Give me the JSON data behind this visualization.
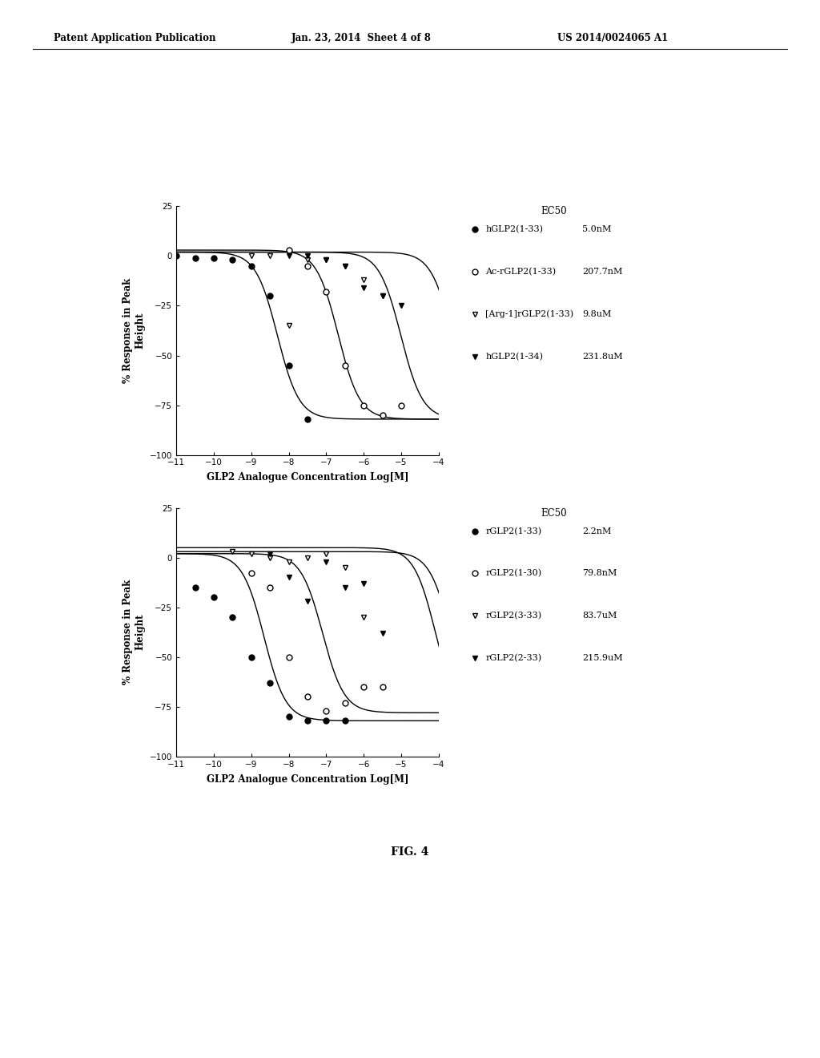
{
  "header_left": "Patent Application Publication",
  "header_mid": "Jan. 23, 2014  Sheet 4 of 8",
  "header_right": "US 2014/0024065 A1",
  "footer": "FIG. 4",
  "plot1": {
    "xlabel": "GLP2 Analogue Concentration Log[M]",
    "ylabel": "% Response in Peak\nHeight",
    "xlim": [
      -11,
      -4
    ],
    "ylim": [
      -100,
      25
    ],
    "yticks": [
      -100,
      -75,
      -50,
      -25,
      0,
      25
    ],
    "xticks": [
      -11,
      -10,
      -9,
      -8,
      -7,
      -6,
      -5,
      -4
    ],
    "ec50_label": "EC50",
    "series": [
      {
        "label": "hGLP2(1-33)",
        "ec50_text": "5.0nM",
        "marker": "o",
        "filled": true,
        "ec50_log": -8.301,
        "hill": 1.5,
        "top": 2,
        "bottom": -82,
        "data_x": [
          -11.0,
          -10.5,
          -10.0,
          -9.5,
          -9.0,
          -8.5,
          -8.0,
          -7.5
        ],
        "data_y": [
          0,
          -1,
          -1,
          -2,
          -5,
          -20,
          -55,
          -82
        ]
      },
      {
        "label": "Ac-rGLP2(1-33)",
        "ec50_text": "207.7nM",
        "marker": "o",
        "filled": false,
        "ec50_log": -6.683,
        "hill": 1.5,
        "top": 3,
        "bottom": -82,
        "data_x": [
          -8.0,
          -7.5,
          -7.0,
          -6.5,
          -6.0,
          -5.5,
          -5.0
        ],
        "data_y": [
          3,
          -5,
          -18,
          -55,
          -75,
          -80,
          -75
        ]
      },
      {
        "label": "[Arg-1]rGLP2(1-33)",
        "ec50_text": "9.8uM",
        "marker": "v",
        "filled": false,
        "ec50_log": -5.009,
        "hill": 1.5,
        "top": 2,
        "bottom": -82,
        "data_x": [
          -9.0,
          -8.5,
          -8.0,
          -7.5,
          -7.0,
          -6.5,
          -6.0,
          -5.5
        ],
        "data_y": [
          0,
          0,
          -35,
          -2,
          -2,
          -5,
          -12,
          -20
        ]
      },
      {
        "label": "hGLP2(1-34)",
        "ec50_text": "231.8uM",
        "marker": "v",
        "filled": true,
        "ec50_log": -3.635,
        "hill": 1.5,
        "top": 2,
        "bottom": -82,
        "data_x": [
          -8.0,
          -7.5,
          -7.0,
          -6.5,
          -6.0,
          -5.5,
          -5.0
        ],
        "data_y": [
          0,
          0,
          -2,
          -5,
          -16,
          -20,
          -25
        ]
      }
    ]
  },
  "plot2": {
    "xlabel": "GLP2 Analogue Concentration Log[M]",
    "ylabel": "% Response in Peak\nHeight",
    "xlim": [
      -11,
      -4
    ],
    "ylim": [
      -100,
      25
    ],
    "yticks": [
      -100,
      -75,
      -50,
      -25,
      0,
      25
    ],
    "xticks": [
      -11,
      -10,
      -9,
      -8,
      -7,
      -6,
      -5,
      -4
    ],
    "ec50_label": "EC50",
    "series": [
      {
        "label": "rGLP2(1-33)",
        "ec50_text": "2.2nM",
        "marker": "o",
        "filled": true,
        "ec50_log": -8.658,
        "hill": 1.5,
        "top": 2,
        "bottom": -82,
        "data_x": [
          -10.5,
          -10.0,
          -9.5,
          -9.0,
          -8.5,
          -8.0,
          -7.5,
          -7.0,
          -6.5
        ],
        "data_y": [
          -15,
          -20,
          -30,
          -50,
          -63,
          -80,
          -82,
          -82,
          -82
        ]
      },
      {
        "label": "rGLP2(1-30)",
        "ec50_text": "79.8nM",
        "marker": "o",
        "filled": false,
        "ec50_log": -7.098,
        "hill": 1.5,
        "top": 2,
        "bottom": -78,
        "data_x": [
          -9.0,
          -8.5,
          -8.0,
          -7.5,
          -7.0,
          -6.5,
          -6.0,
          -5.5
        ],
        "data_y": [
          -8,
          -15,
          -50,
          -70,
          -77,
          -73,
          -65,
          -65
        ]
      },
      {
        "label": "rGLP2(3-33)",
        "ec50_text": "83.7uM",
        "marker": "v",
        "filled": false,
        "ec50_log": -4.077,
        "hill": 1.5,
        "top": 5,
        "bottom": -82,
        "data_x": [
          -9.5,
          -9.0,
          -8.5,
          -8.0,
          -7.5,
          -7.0,
          -6.5,
          -6.0
        ],
        "data_y": [
          3,
          2,
          0,
          -2,
          0,
          2,
          -5,
          -30
        ]
      },
      {
        "label": "rGLP2(2-33)",
        "ec50_text": "215.9uM",
        "marker": "v",
        "filled": true,
        "ec50_log": -3.667,
        "hill": 1.5,
        "top": 3,
        "bottom": -82,
        "data_x": [
          -8.5,
          -8.0,
          -7.5,
          -7.0,
          -6.5,
          -6.0,
          -5.5
        ],
        "data_y": [
          2,
          -10,
          -22,
          -2,
          -15,
          -13,
          -38
        ]
      }
    ]
  }
}
